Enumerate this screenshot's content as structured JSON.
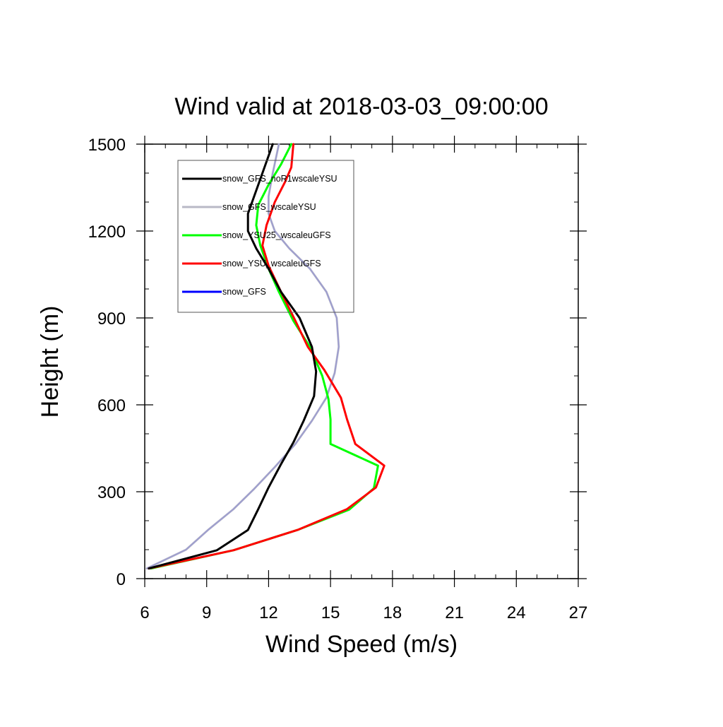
{
  "chart_data": {
    "type": "line",
    "title": "Wind valid at 2018-03-03_09:00:00",
    "xlabel": "Wind Speed (m/s)",
    "ylabel": "Height (m)",
    "xlim": [
      6,
      27
    ],
    "ylim": [
      0,
      1500
    ],
    "xticks": [
      6,
      9,
      12,
      15,
      18,
      21,
      24,
      27
    ],
    "yticks": [
      0,
      300,
      600,
      900,
      1200,
      1500
    ],
    "xtick_labels": [
      "6",
      "9",
      "12",
      "15",
      "18",
      "21",
      "24",
      "27"
    ],
    "ytick_labels": [
      "0",
      "300",
      "600",
      "900",
      "1200",
      "1500"
    ],
    "x_minor_step": 1,
    "y_minor_step": 100,
    "grid": false,
    "legend_position": "top-left",
    "series": [
      {
        "name": "snow_GFS_noR1wscaleYSU",
        "color": "#000000",
        "points": [
          {
            "x": 6.2,
            "y": 35
          },
          {
            "x": 9.5,
            "y": 98
          },
          {
            "x": 11.0,
            "y": 168
          },
          {
            "x": 11.5,
            "y": 240
          },
          {
            "x": 12.0,
            "y": 315
          },
          {
            "x": 12.6,
            "y": 395
          },
          {
            "x": 13.2,
            "y": 470
          },
          {
            "x": 13.7,
            "y": 545
          },
          {
            "x": 14.2,
            "y": 630
          },
          {
            "x": 14.3,
            "y": 715
          },
          {
            "x": 14.1,
            "y": 800
          },
          {
            "x": 13.5,
            "y": 900
          },
          {
            "x": 12.6,
            "y": 990
          },
          {
            "x": 12.0,
            "y": 1070
          },
          {
            "x": 11.4,
            "y": 1140
          },
          {
            "x": 11.0,
            "y": 1200
          },
          {
            "x": 11.0,
            "y": 1260
          },
          {
            "x": 11.3,
            "y": 1320
          },
          {
            "x": 11.7,
            "y": 1400
          },
          {
            "x": 12.2,
            "y": 1500
          }
        ]
      },
      {
        "name": "snow_GFS_wscaleYSU",
        "color": "#b8b8c6",
        "points": [
          {
            "x": 6.1,
            "y": 35
          },
          {
            "x": 8.0,
            "y": 100
          },
          {
            "x": 9.1,
            "y": 170
          },
          {
            "x": 10.3,
            "y": 240
          },
          {
            "x": 11.3,
            "y": 310
          },
          {
            "x": 12.3,
            "y": 385
          },
          {
            "x": 13.3,
            "y": 465
          },
          {
            "x": 14.1,
            "y": 545
          },
          {
            "x": 14.8,
            "y": 625
          },
          {
            "x": 15.2,
            "y": 710
          },
          {
            "x": 15.4,
            "y": 800
          },
          {
            "x": 15.3,
            "y": 900
          },
          {
            "x": 14.8,
            "y": 990
          },
          {
            "x": 14.0,
            "y": 1070
          },
          {
            "x": 13.0,
            "y": 1140
          },
          {
            "x": 12.3,
            "y": 1200
          },
          {
            "x": 12.0,
            "y": 1260
          },
          {
            "x": 12.0,
            "y": 1320
          },
          {
            "x": 12.2,
            "y": 1400
          },
          {
            "x": 12.5,
            "y": 1500
          }
        ]
      },
      {
        "name": "snow_YSU25_wscaleuGFS",
        "color": "#00ff00",
        "points": [
          {
            "x": 6.3,
            "y": 35
          },
          {
            "x": 10.3,
            "y": 98
          },
          {
            "x": 13.4,
            "y": 168
          },
          {
            "x": 15.9,
            "y": 238
          },
          {
            "x": 17.1,
            "y": 312
          },
          {
            "x": 17.3,
            "y": 390
          },
          {
            "x": 15.0,
            "y": 465
          },
          {
            "x": 15.0,
            "y": 550
          },
          {
            "x": 14.9,
            "y": 620
          },
          {
            "x": 14.6,
            "y": 700
          },
          {
            "x": 14.0,
            "y": 800
          },
          {
            "x": 13.2,
            "y": 890
          },
          {
            "x": 12.5,
            "y": 990
          },
          {
            "x": 12.0,
            "y": 1070
          },
          {
            "x": 11.6,
            "y": 1150
          },
          {
            "x": 11.4,
            "y": 1220
          },
          {
            "x": 11.5,
            "y": 1290
          },
          {
            "x": 12.0,
            "y": 1360
          },
          {
            "x": 12.6,
            "y": 1430
          },
          {
            "x": 13.1,
            "y": 1500
          }
        ]
      },
      {
        "name": "snow_YSU_wscaleuGFS",
        "color": "#ff0000",
        "points": [
          {
            "x": 6.2,
            "y": 35
          },
          {
            "x": 10.3,
            "y": 98
          },
          {
            "x": 13.4,
            "y": 168
          },
          {
            "x": 15.8,
            "y": 240
          },
          {
            "x": 17.2,
            "y": 315
          },
          {
            "x": 17.6,
            "y": 390
          },
          {
            "x": 16.2,
            "y": 465
          },
          {
            "x": 15.8,
            "y": 550
          },
          {
            "x": 15.5,
            "y": 625
          },
          {
            "x": 14.7,
            "y": 720
          },
          {
            "x": 13.9,
            "y": 800
          },
          {
            "x": 13.3,
            "y": 890
          },
          {
            "x": 12.6,
            "y": 990
          },
          {
            "x": 12.0,
            "y": 1080
          },
          {
            "x": 11.7,
            "y": 1150
          },
          {
            "x": 11.9,
            "y": 1220
          },
          {
            "x": 12.3,
            "y": 1300
          },
          {
            "x": 12.8,
            "y": 1370
          },
          {
            "x": 13.1,
            "y": 1420
          },
          {
            "x": 13.2,
            "y": 1500
          }
        ]
      },
      {
        "name": "snow_GFS",
        "color": "#0000ff",
        "points": [
          {
            "x": 6.1,
            "y": 35
          },
          {
            "x": 8.0,
            "y": 100
          },
          {
            "x": 9.1,
            "y": 170
          },
          {
            "x": 10.3,
            "y": 240
          },
          {
            "x": 11.3,
            "y": 310
          },
          {
            "x": 12.3,
            "y": 385
          },
          {
            "x": 13.3,
            "y": 465
          },
          {
            "x": 14.1,
            "y": 545
          },
          {
            "x": 14.8,
            "y": 625
          },
          {
            "x": 15.2,
            "y": 710
          },
          {
            "x": 15.4,
            "y": 800
          },
          {
            "x": 15.3,
            "y": 900
          },
          {
            "x": 14.8,
            "y": 990
          },
          {
            "x": 14.0,
            "y": 1070
          },
          {
            "x": 13.0,
            "y": 1140
          },
          {
            "x": 12.3,
            "y": 1200
          },
          {
            "x": 12.0,
            "y": 1260
          },
          {
            "x": 12.0,
            "y": 1320
          },
          {
            "x": 12.2,
            "y": 1400
          },
          {
            "x": 12.5,
            "y": 1500
          }
        ]
      }
    ]
  }
}
